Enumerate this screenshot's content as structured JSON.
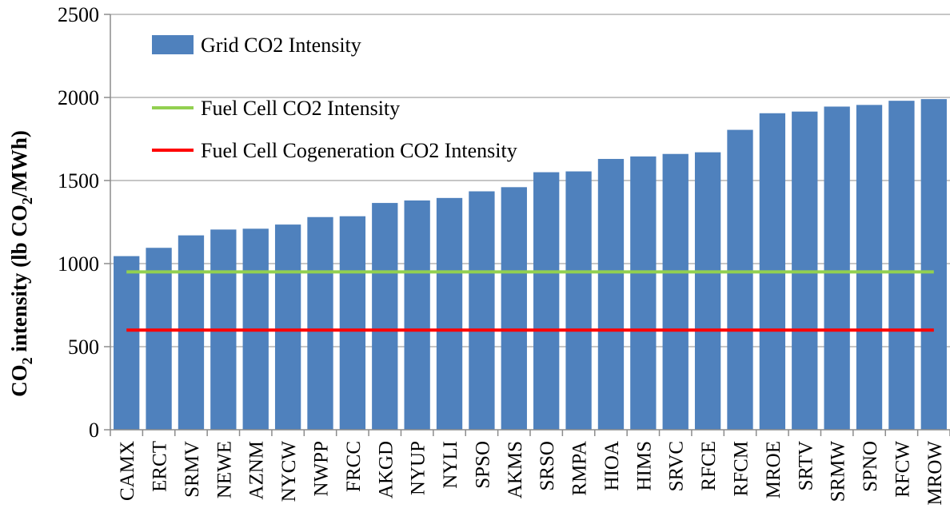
{
  "chart_data": {
    "type": "bar",
    "categories": [
      "CAMX",
      "ERCT",
      "SRMV",
      "NEWE",
      "AZNM",
      "NYCW",
      "NWPP",
      "FRCC",
      "AKGD",
      "NYUP",
      "NYLI",
      "SPSO",
      "AKMS",
      "SRSO",
      "RMPA",
      "HIOA",
      "HIMS",
      "SRVC",
      "RFCE",
      "RFCM",
      "MROE",
      "SRTV",
      "SRMW",
      "SPNO",
      "RFCW",
      "MROW"
    ],
    "series": [
      {
        "name": "Grid CO2 Intensity",
        "kind": "bar",
        "color": "#4F81BD",
        "values": [
          1045,
          1095,
          1170,
          1205,
          1210,
          1235,
          1280,
          1285,
          1365,
          1380,
          1395,
          1435,
          1460,
          1550,
          1555,
          1630,
          1645,
          1660,
          1670,
          1805,
          1905,
          1915,
          1945,
          1955,
          1980,
          1990
        ]
      },
      {
        "name": "Fuel Cell CO2 Intensity",
        "kind": "line",
        "color": "#92D050",
        "value": 950
      },
      {
        "name": "Fuel Cell Cogeneration CO2 Intensity",
        "kind": "line",
        "color": "#FF0000",
        "value": 600
      }
    ],
    "ylim": [
      0,
      2500
    ],
    "yticks": [
      0,
      500,
      1000,
      1500,
      2000,
      2500
    ],
    "ylabel": {
      "pre": "CO",
      "sub1": "2",
      "mid": " intensity (lb CO",
      "sub2": "2",
      "post": "/MWh)"
    },
    "xlabel": "",
    "grid": true,
    "legend_position": "top-left"
  }
}
